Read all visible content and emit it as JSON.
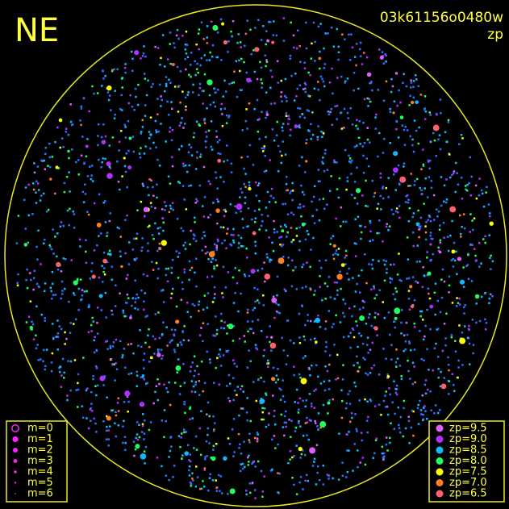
{
  "header": {
    "direction": "NE",
    "image_id": "03k61156o0480w",
    "mode": "zp"
  },
  "magnitude_legend": {
    "items": [
      "m=0",
      "m=1",
      "m=2",
      "m=3",
      "m=4",
      "m=5",
      "m=6"
    ]
  },
  "zp_legend": {
    "items": [
      {
        "label": "zp=9.5",
        "color": "#e060ff"
      },
      {
        "label": "zp=9.0",
        "color": "#b030ff"
      },
      {
        "label": "zp=8.5",
        "color": "#10b8ff"
      },
      {
        "label": "zp=8.0",
        "color": "#20ff60"
      },
      {
        "label": "zp=7.5",
        "color": "#ffff00"
      },
      {
        "label": "zp=7.0",
        "color": "#ff8020"
      },
      {
        "label": "zp=6.5",
        "color": "#ff6070"
      }
    ]
  }
}
